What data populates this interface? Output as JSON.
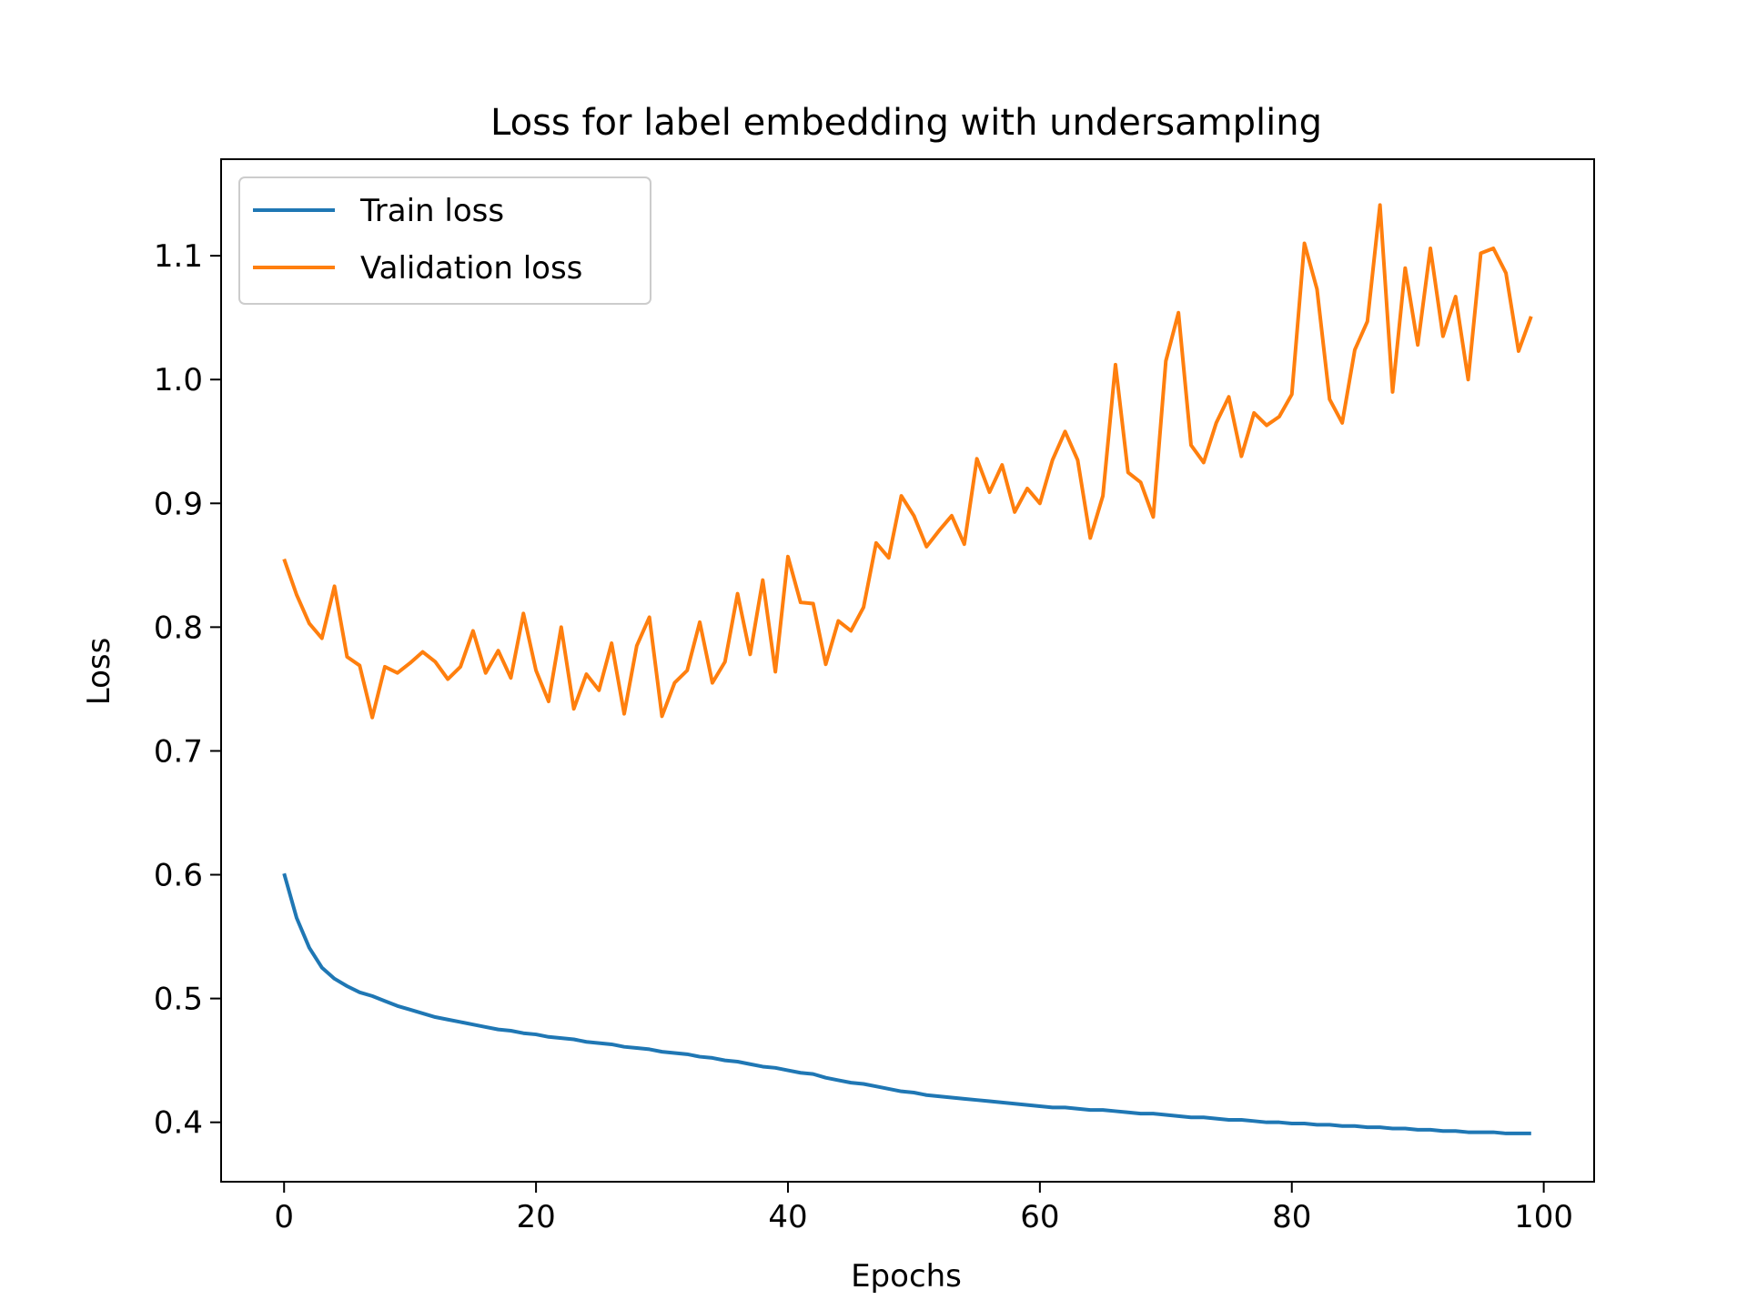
{
  "chart_data": {
    "type": "line",
    "title": "Loss for label embedding with undersampling",
    "xlabel": "Epochs",
    "ylabel": "Loss",
    "xlim": [
      -5,
      104
    ],
    "ylim": [
      0.352,
      1.178
    ],
    "xticks": [
      0,
      20,
      40,
      60,
      80,
      100
    ],
    "yticks": [
      0.4,
      0.5,
      0.6,
      0.7,
      0.8,
      0.9,
      1.0,
      1.1
    ],
    "xtick_labels": [
      "0",
      "20",
      "40",
      "60",
      "80",
      "100"
    ],
    "ytick_labels": [
      "0.4",
      "0.5",
      "0.6",
      "0.7",
      "0.8",
      "0.9",
      "1.0",
      "1.1"
    ],
    "grid": false,
    "legend_position": "top-left",
    "series": [
      {
        "name": "Train loss",
        "color": "#1f77b4",
        "values": [
          0.601,
          0.565,
          0.541,
          0.525,
          0.516,
          0.51,
          0.505,
          0.502,
          0.498,
          0.494,
          0.491,
          0.488,
          0.485,
          0.483,
          0.481,
          0.479,
          0.477,
          0.475,
          0.474,
          0.472,
          0.471,
          0.469,
          0.468,
          0.467,
          0.465,
          0.464,
          0.463,
          0.461,
          0.46,
          0.459,
          0.457,
          0.456,
          0.455,
          0.453,
          0.452,
          0.45,
          0.449,
          0.447,
          0.445,
          0.444,
          0.442,
          0.44,
          0.439,
          0.436,
          0.434,
          0.432,
          0.431,
          0.429,
          0.427,
          0.425,
          0.424,
          0.422,
          0.421,
          0.42,
          0.419,
          0.418,
          0.417,
          0.416,
          0.415,
          0.414,
          0.413,
          0.412,
          0.412,
          0.411,
          0.41,
          0.41,
          0.409,
          0.408,
          0.407,
          0.407,
          0.406,
          0.405,
          0.404,
          0.404,
          0.403,
          0.402,
          0.402,
          0.401,
          0.4,
          0.4,
          0.399,
          0.399,
          0.398,
          0.398,
          0.397,
          0.397,
          0.396,
          0.396,
          0.395,
          0.395,
          0.394,
          0.394,
          0.393,
          0.393,
          0.392,
          0.392,
          0.392,
          0.391,
          0.391,
          0.391
        ]
      },
      {
        "name": "Validation loss",
        "color": "#ff7f0e",
        "values": [
          0.855,
          0.826,
          0.803,
          0.791,
          0.833,
          0.776,
          0.769,
          0.727,
          0.768,
          0.763,
          0.771,
          0.78,
          0.772,
          0.758,
          0.768,
          0.797,
          0.763,
          0.781,
          0.759,
          0.811,
          0.765,
          0.74,
          0.8,
          0.734,
          0.762,
          0.749,
          0.787,
          0.73,
          0.785,
          0.808,
          0.728,
          0.755,
          0.765,
          0.804,
          0.755,
          0.772,
          0.827,
          0.778,
          0.838,
          0.764,
          0.857,
          0.82,
          0.819,
          0.77,
          0.805,
          0.797,
          0.816,
          0.868,
          0.856,
          0.906,
          0.89,
          0.865,
          0.878,
          0.89,
          0.867,
          0.936,
          0.909,
          0.931,
          0.893,
          0.912,
          0.9,
          0.935,
          0.958,
          0.935,
          0.872,
          0.906,
          1.012,
          0.925,
          0.917,
          0.889,
          1.015,
          1.054,
          0.947,
          0.933,
          0.965,
          0.986,
          0.938,
          0.973,
          0.963,
          0.97,
          0.988,
          1.11,
          1.073,
          0.984,
          0.965,
          1.024,
          1.047,
          1.141,
          0.99,
          1.09,
          1.028,
          1.106,
          1.035,
          1.067,
          1.0,
          1.102,
          1.106,
          1.086,
          1.023,
          1.051
        ]
      }
    ]
  }
}
